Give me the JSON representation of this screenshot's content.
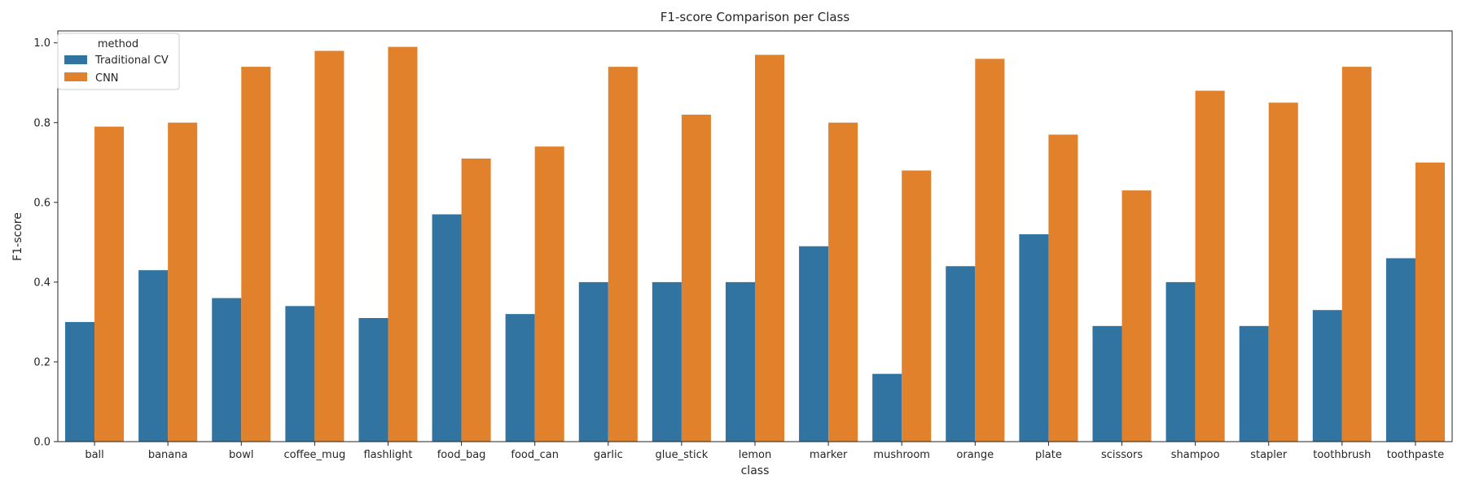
{
  "chart_data": {
    "type": "bar",
    "title": "F1-score Comparison per Class",
    "xlabel": "class",
    "ylabel": "F1-score",
    "ylim": [
      0,
      1.03
    ],
    "yticks": [
      0.0,
      0.2,
      0.4,
      0.6,
      0.8,
      1.0
    ],
    "ytick_labels": [
      "0.0",
      "0.2",
      "0.4",
      "0.6",
      "0.8",
      "1.0"
    ],
    "grid": false,
    "legend": {
      "title": "method",
      "placement": "top-left"
    },
    "categories": [
      "ball",
      "banana",
      "bowl",
      "coffee_mug",
      "flashlight",
      "food_bag",
      "food_can",
      "garlic",
      "glue_stick",
      "lemon",
      "marker",
      "mushroom",
      "orange",
      "plate",
      "scissors",
      "shampoo",
      "stapler",
      "toothbrush",
      "toothpaste"
    ],
    "series": [
      {
        "name": "Traditional CV",
        "color": "#3274a1",
        "values": [
          0.3,
          0.43,
          0.36,
          0.34,
          0.31,
          0.57,
          0.32,
          0.4,
          0.4,
          0.4,
          0.49,
          0.17,
          0.44,
          0.52,
          0.29,
          0.4,
          0.29,
          0.33,
          0.46
        ]
      },
      {
        "name": "CNN",
        "color": "#e1812c",
        "values": [
          0.79,
          0.8,
          0.94,
          0.98,
          0.99,
          0.71,
          0.74,
          0.94,
          0.82,
          0.97,
          0.8,
          0.68,
          0.96,
          0.77,
          0.63,
          0.88,
          0.85,
          0.94,
          0.7
        ]
      }
    ]
  }
}
